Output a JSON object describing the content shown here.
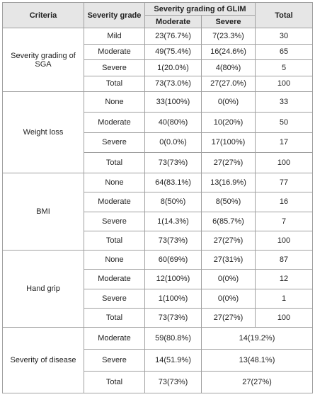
{
  "table": {
    "header": {
      "criteria": "Criteria",
      "grade": "Severity grade",
      "glim": "Severity grading of GLIM",
      "moderate": "Moderate",
      "severe": "Severe",
      "total": "Total"
    },
    "groups": [
      {
        "criteria": "Severity grading of SGA",
        "rows": [
          [
            "Mild",
            "23(76.7%)",
            "7(23.3%)",
            "30"
          ],
          [
            "Moderate",
            "49(75.4%)",
            "16(24.6%)",
            "65"
          ],
          [
            "Severe",
            "1(20.0%)",
            "4(80%)",
            "5"
          ],
          [
            "Total",
            "73(73.0%)",
            "27(27.0%)",
            "100"
          ]
        ]
      },
      {
        "criteria": "Weight loss",
        "rows": [
          [
            "None",
            "33(100%)",
            "0(0%)",
            "33"
          ],
          [
            "Moderate",
            "40(80%)",
            "10(20%)",
            "50"
          ],
          [
            "Severe",
            "0(0.0%)",
            "17(100%)",
            "17"
          ],
          [
            "Total",
            "73(73%)",
            "27(27%)",
            "100"
          ]
        ]
      },
      {
        "criteria": "BMI",
        "rows": [
          [
            "None",
            "64(83.1%)",
            "13(16.9%)",
            "77"
          ],
          [
            "Moderate",
            "8(50%)",
            "8(50%)",
            "16"
          ],
          [
            "Severe",
            "1(14.3%)",
            "6(85.7%)",
            "7"
          ],
          [
            "Total",
            "73(73%)",
            "27(27%)",
            "100"
          ]
        ]
      },
      {
        "criteria": "Hand grip",
        "rows": [
          [
            "None",
            "60(69%)",
            "27(31%)",
            "87"
          ],
          [
            "Moderate",
            "12(100%)",
            "0(0%)",
            "12"
          ],
          [
            "Severe",
            "1(100%)",
            "0(0%)",
            "1"
          ],
          [
            "Total",
            "73(73%)",
            "27(27%)",
            "100"
          ]
        ]
      },
      {
        "criteria": "Severity of disease",
        "rows": [
          [
            "Moderate",
            "59(80.8%)",
            "14(19.2%)"
          ],
          [
            "Severe",
            "14(51.9%)",
            "13(48.1%)"
          ],
          [
            "Total",
            "73(73%)",
            "27(27%)"
          ]
        ]
      }
    ]
  }
}
